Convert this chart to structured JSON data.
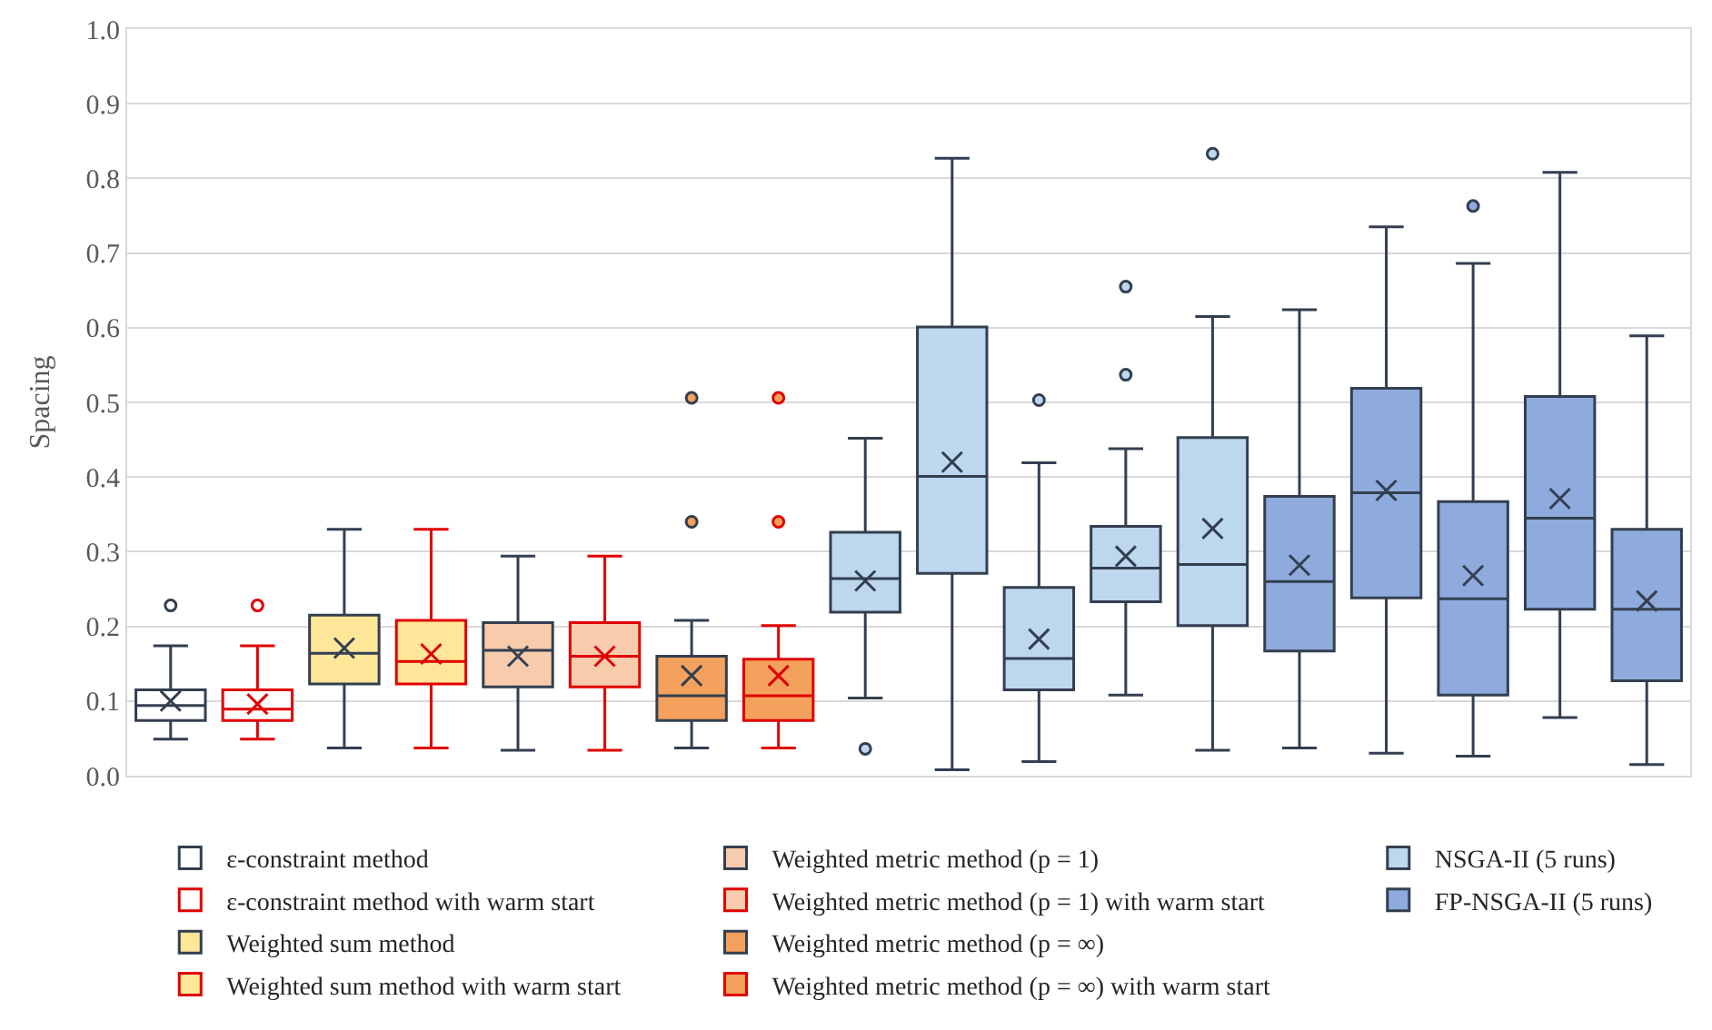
{
  "chart_data": {
    "type": "box",
    "ylabel": "Spacing",
    "categories": [
      null,
      null,
      null,
      null,
      null,
      null,
      null,
      null,
      null,
      null,
      null,
      null,
      null,
      null,
      null,
      null,
      null,
      null
    ],
    "ylim": [
      0,
      1
    ],
    "yticks": [
      {
        "value": 0,
        "label": "0.0"
      },
      0.1,
      0.2,
      0.3,
      0.4,
      0.5,
      0.6,
      0.7,
      0.8,
      0.9,
      {
        "value": 1,
        "label": "1.0"
      }
    ],
    "grid": "y",
    "legend": "bottom",
    "tick_labels": "y",
    "series": [
      {
        "name": "ε-constraint method",
        "color": "#333f50",
        "colors": [
          "#ffffff",
          null,
          null,
          null,
          null,
          null,
          null,
          null,
          null,
          null,
          null,
          null,
          null,
          null,
          null,
          null,
          null,
          null
        ],
        "boxes": [
          {
            "low": 0.049,
            "q1": 0.074,
            "median": 0.094,
            "q3": 0.115,
            "high": 0.174,
            "mean": 0.1,
            "outliers": [
              0.228
            ]
          },
          null,
          null,
          null,
          null,
          null,
          null,
          null,
          null,
          null,
          null,
          null,
          null,
          null,
          null,
          null,
          null,
          null
        ]
      },
      {
        "name": "ε-constraint method with warm start",
        "color": "#e00000",
        "colors": [
          null,
          "#ffffff",
          null,
          null,
          null,
          null,
          null,
          null,
          null,
          null,
          null,
          null,
          null,
          null,
          null,
          null,
          null,
          null
        ],
        "boxes": [
          null,
          {
            "low": 0.049,
            "q1": 0.074,
            "median": 0.089,
            "q3": 0.115,
            "high": 0.174,
            "mean": 0.096,
            "outliers": [
              0.228
            ]
          },
          null,
          null,
          null,
          null,
          null,
          null,
          null,
          null,
          null,
          null,
          null,
          null,
          null,
          null,
          null,
          null
        ]
      },
      {
        "name": "Weighted sum method",
        "color": "#333f50",
        "colors": [
          null,
          null,
          "#ffe699",
          null,
          null,
          null,
          null,
          null,
          null,
          null,
          null,
          null,
          null,
          null,
          null,
          null,
          null,
          null
        ],
        "boxes": [
          null,
          null,
          {
            "low": 0.037,
            "q1": 0.123,
            "median": 0.164,
            "q3": 0.215,
            "high": 0.33,
            "mean": 0.171
          },
          null,
          null,
          null,
          null,
          null,
          null,
          null,
          null,
          null,
          null,
          null,
          null,
          null,
          null,
          null
        ]
      },
      {
        "name": "Weighted sum method with warm start",
        "color": "#e00000",
        "colors": [
          null,
          null,
          null,
          "#ffe699",
          null,
          null,
          null,
          null,
          null,
          null,
          null,
          null,
          null,
          null,
          null,
          null,
          null,
          null
        ],
        "boxes": [
          null,
          null,
          null,
          {
            "low": 0.037,
            "q1": 0.123,
            "median": 0.153,
            "q3": 0.208,
            "high": 0.33,
            "mean": 0.163
          },
          null,
          null,
          null,
          null,
          null,
          null,
          null,
          null,
          null,
          null,
          null,
          null,
          null,
          null
        ]
      },
      {
        "name": "Weighted metric method (p = 1)",
        "color": "#333f50",
        "colors": [
          null,
          null,
          null,
          null,
          "#f8cbad",
          null,
          null,
          null,
          null,
          null,
          null,
          null,
          null,
          null,
          null,
          null,
          null,
          null
        ],
        "boxes": [
          null,
          null,
          null,
          null,
          {
            "low": 0.034,
            "q1": 0.119,
            "median": 0.168,
            "q3": 0.205,
            "high": 0.294,
            "mean": 0.16
          },
          null,
          null,
          null,
          null,
          null,
          null,
          null,
          null,
          null,
          null,
          null,
          null,
          null
        ]
      },
      {
        "name": "Weighted metric method (p = 1) with warm start",
        "color": "#e00000",
        "colors": [
          null,
          null,
          null,
          null,
          null,
          "#f8cbad",
          null,
          null,
          null,
          null,
          null,
          null,
          null,
          null,
          null,
          null,
          null,
          null
        ],
        "boxes": [
          null,
          null,
          null,
          null,
          null,
          {
            "low": 0.034,
            "q1": 0.119,
            "median": 0.16,
            "q3": 0.205,
            "high": 0.294,
            "mean": 0.16
          },
          null,
          null,
          null,
          null,
          null,
          null,
          null,
          null,
          null,
          null,
          null,
          null
        ]
      },
      {
        "name": "Weighted metric method (p = ∞)",
        "color": "#333f50",
        "colors": [
          null,
          null,
          null,
          null,
          null,
          null,
          "#f4a15d",
          null,
          null,
          null,
          null,
          null,
          null,
          null,
          null,
          null,
          null,
          null
        ],
        "boxes": [
          null,
          null,
          null,
          null,
          null,
          null,
          {
            "low": 0.037,
            "q1": 0.074,
            "median": 0.107,
            "q3": 0.16,
            "high": 0.208,
            "mean": 0.134,
            "outliers": [
              0.34,
              0.506
            ]
          },
          null,
          null,
          null,
          null,
          null,
          null,
          null,
          null,
          null,
          null,
          null
        ]
      },
      {
        "name": "Weighted metric method (p = ∞) with warm start",
        "color": "#e00000",
        "colors": [
          null,
          null,
          null,
          null,
          null,
          null,
          null,
          "#f4a15d",
          null,
          null,
          null,
          null,
          null,
          null,
          null,
          null,
          null,
          null
        ],
        "boxes": [
          null,
          null,
          null,
          null,
          null,
          null,
          null,
          {
            "low": 0.037,
            "q1": 0.074,
            "median": 0.107,
            "q3": 0.156,
            "high": 0.201,
            "mean": 0.134,
            "outliers": [
              0.34,
              0.506
            ]
          },
          null,
          null,
          null,
          null,
          null,
          null,
          null,
          null,
          null,
          null
        ]
      },
      {
        "name": "NSGA-II (5 runs)",
        "color": "#333f50",
        "colors": [
          null,
          null,
          null,
          null,
          null,
          null,
          null,
          null,
          "#bdd7ee",
          "#bdd7ee",
          "#bdd7ee",
          "#bdd7ee",
          "#bdd7ee",
          null,
          null,
          null,
          null,
          null
        ],
        "boxes": [
          null,
          null,
          null,
          null,
          null,
          null,
          null,
          null,
          {
            "low": 0.104,
            "q1": 0.219,
            "median": 0.264,
            "q3": 0.326,
            "high": 0.452,
            "mean": 0.261,
            "outliers": [
              0.036
            ]
          },
          {
            "low": 0.008,
            "q1": 0.271,
            "median": 0.401,
            "q3": 0.601,
            "high": 0.827,
            "mean": 0.42
          },
          {
            "low": 0.019,
            "q1": 0.115,
            "median": 0.157,
            "q3": 0.252,
            "high": 0.419,
            "mean": 0.183,
            "outliers": [
              0.503
            ]
          },
          {
            "low": 0.108,
            "q1": 0.233,
            "median": 0.278,
            "q3": 0.334,
            "high": 0.438,
            "mean": 0.294,
            "outliers": [
              0.537,
              0.655
            ]
          },
          {
            "low": 0.034,
            "q1": 0.201,
            "median": 0.283,
            "q3": 0.453,
            "high": 0.615,
            "mean": 0.331,
            "outliers": [
              0.833
            ]
          },
          null,
          null,
          null,
          null,
          null
        ]
      },
      {
        "name": "FP-NSGA-II (5 runs)",
        "color": "#333f50",
        "colors": [
          null,
          null,
          null,
          null,
          null,
          null,
          null,
          null,
          null,
          null,
          null,
          null,
          null,
          "#8faadc",
          "#8faadc",
          "#8faadc",
          "#8faadc",
          "#8faadc"
        ],
        "boxes": [
          null,
          null,
          null,
          null,
          null,
          null,
          null,
          null,
          null,
          null,
          null,
          null,
          null,
          {
            "low": 0.037,
            "q1": 0.167,
            "median": 0.26,
            "q3": 0.374,
            "high": 0.624,
            "mean": 0.282
          },
          {
            "low": 0.03,
            "q1": 0.238,
            "median": 0.379,
            "q3": 0.519,
            "high": 0.735,
            "mean": 0.382
          },
          {
            "low": 0.026,
            "q1": 0.108,
            "median": 0.237,
            "q3": 0.367,
            "high": 0.686,
            "mean": 0.268,
            "outliers": [
              0.763
            ]
          },
          {
            "low": 0.078,
            "q1": 0.223,
            "median": 0.345,
            "q3": 0.508,
            "high": 0.808,
            "mean": 0.371
          },
          {
            "low": 0.015,
            "q1": 0.127,
            "median": 0.223,
            "q3": 0.33,
            "high": 0.589,
            "mean": 0.234
          }
        ]
      }
    ]
  }
}
